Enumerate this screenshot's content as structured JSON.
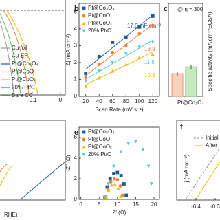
{
  "chart_data": [
    {
      "type": "line",
      "xlim": [
        -0.2,
        0.02
      ],
      "xticks": [
        -0.1,
        0
      ],
      "series": [
        {
          "name": "Cu foil",
          "color": "#9a9a9a"
        },
        {
          "name": "Cu-ER",
          "color": "#c8a070"
        },
        {
          "name": "Pt@Co₃O₄",
          "color": "#1f5a96"
        },
        {
          "name": "Pt@CoO",
          "color": "#f07f3c"
        },
        {
          "name": "Pt@CoOₓ",
          "color": "#f5b800"
        },
        {
          "name": "20% Pt/C",
          "color": "#55c8d8"
        },
        {
          "name": "Bare CC",
          "color": "#6cbf5a"
        }
      ]
    },
    {
      "type": "scatter",
      "panel": "b",
      "xlabel": "Scan Rate (mV s⁻¹)",
      "ylabel": "Δj (mA cm⁻²)",
      "x": [
        20,
        40,
        60,
        80,
        100,
        120
      ],
      "xlim": [
        10,
        130
      ],
      "xticks": [
        20,
        40,
        60,
        80,
        100,
        120
      ],
      "ylim": [
        0,
        5.5
      ],
      "yticks": [
        0,
        1,
        2,
        3,
        4,
        5
      ],
      "series": [
        {
          "name": "Pt@Co₃O₄",
          "color": "#1f5a96",
          "values": [
            1.35,
            2.35,
            3.2,
            3.5,
            4.1,
            4.75
          ],
          "slope_label": "17.0 mF cm⁻²"
        },
        {
          "name": "Pt@CoO",
          "color": "#f07f3c",
          "values": [
            1.1,
            1.9,
            2.6,
            3.0,
            3.7,
            4.2
          ],
          "slope_label": "13.9"
        },
        {
          "name": "Pt@CoOₓ",
          "color": "#f5b800",
          "values": [
            0.6,
            1.1,
            1.5,
            1.9,
            2.3,
            2.5
          ],
          "slope_label": "10.9"
        },
        {
          "name": "20% Pt/C",
          "color": "#55c8d8",
          "values": [
            0.9,
            1.5,
            2.0,
            2.5,
            2.9,
            3.2
          ],
          "slope_label": "11.5"
        }
      ]
    },
    {
      "type": "bar",
      "panel": "c",
      "title": "@ η = 300",
      "ylabel": "Specific activity (mA cm⁻²ECSA)",
      "categories": [
        "Pt@Co₃O₄",
        null
      ],
      "values": [
        0.1,
        0.13
      ],
      "errors": [
        0.01,
        0.01
      ],
      "colors": [
        "#f9d2bd",
        "#c6e9c0"
      ],
      "edge_colors": [
        "#f07f3c",
        "#4caf50"
      ],
      "ylim": [
        0,
        0.41
      ]
    },
    {
      "type": "line",
      "xlabel": "RHE)"
    },
    {
      "type": "scatter",
      "panel": "e",
      "xlabel": "Z' (Ω)",
      "ylabel": "-Z'' (Ω)",
      "xlim": [
        -0.5,
        21.5
      ],
      "xticks": [
        0,
        5,
        10,
        15,
        20
      ],
      "ylim": [
        0,
        7
      ],
      "yticks": [
        0,
        2,
        4,
        6
      ],
      "series": [
        {
          "name": "Pt@Co₃O₄",
          "color": "#1f5a96",
          "x": [
            6.6,
            7.2,
            8.0,
            9.0,
            10.0,
            11.0,
            11.8,
            12.4
          ],
          "values": [
            0.2,
            1.2,
            2.0,
            2.5,
            2.6,
            2.3,
            1.5,
            0.4
          ]
        },
        {
          "name": "Pt@CoO",
          "color": "#f07f3c",
          "x": [
            6.8,
            7.4,
            8.2,
            9.1,
            10.0,
            10.8,
            11.4
          ],
          "values": [
            0.2,
            1.0,
            1.7,
            2.0,
            1.9,
            1.3,
            0.4
          ]
        },
        {
          "name": "Pt@CoOₓ",
          "color": "#f5b800",
          "x": [
            7.0,
            7.6,
            8.4,
            9.3,
            10.2,
            10.8
          ],
          "values": [
            0.2,
            0.9,
            1.4,
            1.5,
            1.1,
            0.3
          ]
        },
        {
          "name": "20% Pt/C",
          "color": "#55c8d8",
          "x": [
            6.6,
            7.5,
            9.0,
            11.0,
            13.0,
            15.0,
            17.0,
            18.5,
            19.3
          ],
          "values": [
            0.3,
            1.5,
            3.2,
            4.6,
            5.4,
            5.6,
            4.8,
            3.2,
            1.5
          ]
        }
      ]
    },
    {
      "type": "line",
      "panel": "f",
      "ylabel": "j (mA cm⁻²)",
      "xlim": [
        -0.45,
        -0.25
      ],
      "xticks": [
        -0.4,
        -0.3
      ],
      "series": [
        {
          "name": "Initial",
          "color": "#8a8a8a",
          "dash": true
        },
        {
          "name": "After",
          "color": "#f5b800",
          "dash": false
        }
      ]
    }
  ]
}
